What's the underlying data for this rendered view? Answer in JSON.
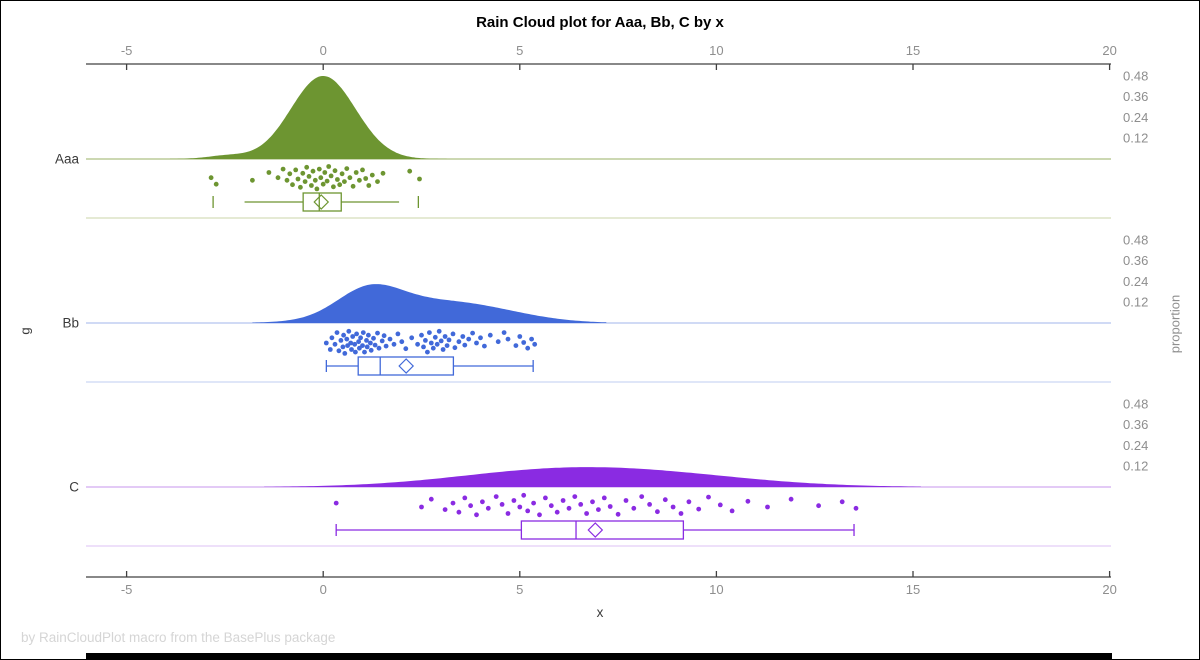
{
  "title": "Rain Cloud plot for Aaa, Bb, C by x",
  "footer": "by RainCloudPlot macro from the BasePlus package",
  "chart_data": {
    "type": "raincloud (half-violin density + jittered points + boxplot, horizontal, grouped)",
    "title": "Rain Cloud plot for Aaa, Bb, C by x",
    "xlabel": "x",
    "ylabel": "g",
    "right_axis_label": "proportion",
    "grid": "off",
    "legend": "none",
    "x_axis": {
      "range": [
        -6.05,
        20.1
      ],
      "shown_on_top_and_bottom": true,
      "ticks": [
        {
          "v": -5,
          "label": "-5"
        },
        {
          "v": 0,
          "label": "0"
        },
        {
          "v": 5,
          "label": "5"
        },
        {
          "v": 10,
          "label": "10"
        },
        {
          "v": 15,
          "label": "15"
        },
        {
          "v": 20,
          "label": "20"
        }
      ]
    },
    "proportion_ticks": [
      {
        "v": 0.48,
        "label": "0.48"
      },
      {
        "v": 0.36,
        "label": "0.36"
      },
      {
        "v": 0.24,
        "label": "0.24"
      },
      {
        "v": 0.12,
        "label": "0.12"
      }
    ],
    "colors": {
      "axis_line": "#404040",
      "tick_label": "#8e8e8e",
      "category_label": "#3a3a3a",
      "title": "#000000",
      "footer": "#d5d5d5",
      "box_fill": "#ffffff"
    },
    "groups": [
      {
        "name": "Aaa",
        "colors": {
          "fill": "#6d9531",
          "baseline": "#aec183",
          "separator": "#d5deba"
        },
        "density": {
          "peak_proportion": 0.48,
          "range": [
            -3.9,
            3.3
          ],
          "components": [
            {
              "mu": 0,
              "sigma": 0.82,
              "w": 1
            },
            {
              "mu": -2.45,
              "sigma": 0.5,
              "w": 0.04
            }
          ]
        },
        "box": {
          "fence_low": -2.8,
          "whisker_low": -2.0,
          "q1": -0.51,
          "median": -0.1,
          "q3": 0.46,
          "whisker_high": 1.93,
          "fence_high": 2.42,
          "mean": -0.05,
          "caps": false
        },
        "points": [
          [
            -2.85,
            0.45
          ],
          [
            -2.72,
            0.7
          ],
          [
            -1.8,
            0.55
          ],
          [
            -1.38,
            0.25
          ],
          [
            -1.15,
            0.45
          ],
          [
            -1.02,
            0.12
          ],
          [
            -0.92,
            0.55
          ],
          [
            -0.85,
            0.3
          ],
          [
            -0.78,
            0.72
          ],
          [
            -0.7,
            0.15
          ],
          [
            -0.64,
            0.5
          ],
          [
            -0.58,
            0.82
          ],
          [
            -0.52,
            0.28
          ],
          [
            -0.46,
            0.6
          ],
          [
            -0.42,
            0.05
          ],
          [
            -0.36,
            0.4
          ],
          [
            -0.3,
            0.75
          ],
          [
            -0.26,
            0.2
          ],
          [
            -0.2,
            0.55
          ],
          [
            -0.16,
            0.88
          ],
          [
            -0.1,
            0.12
          ],
          [
            -0.06,
            0.45
          ],
          [
            0.0,
            0.7
          ],
          [
            0.04,
            0.25
          ],
          [
            0.1,
            0.58
          ],
          [
            0.14,
            0.02
          ],
          [
            0.2,
            0.38
          ],
          [
            0.26,
            0.8
          ],
          [
            0.3,
            0.18
          ],
          [
            0.36,
            0.52
          ],
          [
            0.42,
            0.72
          ],
          [
            0.48,
            0.3
          ],
          [
            0.54,
            0.6
          ],
          [
            0.6,
            0.1
          ],
          [
            0.68,
            0.45
          ],
          [
            0.76,
            0.78
          ],
          [
            0.84,
            0.25
          ],
          [
            0.92,
            0.55
          ],
          [
            1.0,
            0.15
          ],
          [
            1.08,
            0.48
          ],
          [
            1.16,
            0.75
          ],
          [
            1.25,
            0.35
          ],
          [
            1.38,
            0.6
          ],
          [
            1.52,
            0.28
          ],
          [
            2.2,
            0.2
          ],
          [
            2.45,
            0.5
          ]
        ]
      },
      {
        "name": "Bb",
        "colors": {
          "fill": "#4169d9",
          "baseline": "#b3c3ef",
          "separator": "#ccd6f4"
        },
        "density": {
          "peak_proportion": 0.225,
          "range": [
            -1.8,
            7.2
          ],
          "components": [
            {
              "mu": 1.15,
              "sigma": 0.8,
              "w": 1
            },
            {
              "mu": 2.6,
              "sigma": 1.6,
              "w": 0.75
            },
            {
              "mu": 4.2,
              "sigma": 1.3,
              "w": 0.22
            }
          ]
        },
        "box": {
          "fence_low": null,
          "whisker_low": 0.08,
          "q1": 0.89,
          "median": 1.45,
          "q3": 3.31,
          "whisker_high": 5.34,
          "fence_high": null,
          "mean": 2.11,
          "caps": true
        },
        "points": [
          [
            0.08,
            0.5
          ],
          [
            0.18,
            0.75
          ],
          [
            0.22,
            0.3
          ],
          [
            0.3,
            0.55
          ],
          [
            0.35,
            0.1
          ],
          [
            0.4,
            0.8
          ],
          [
            0.45,
            0.4
          ],
          [
            0.5,
            0.65
          ],
          [
            0.52,
            0.2
          ],
          [
            0.55,
            0.9
          ],
          [
            0.6,
            0.35
          ],
          [
            0.62,
            0.6
          ],
          [
            0.65,
            0.05
          ],
          [
            0.7,
            0.5
          ],
          [
            0.72,
            0.75
          ],
          [
            0.75,
            0.25
          ],
          [
            0.8,
            0.55
          ],
          [
            0.82,
            0.85
          ],
          [
            0.85,
            0.15
          ],
          [
            0.9,
            0.45
          ],
          [
            0.92,
            0.7
          ],
          [
            0.95,
            0.3
          ],
          [
            1.0,
            0.6
          ],
          [
            1.02,
            0.1
          ],
          [
            1.05,
            0.85
          ],
          [
            1.1,
            0.4
          ],
          [
            1.12,
            0.65
          ],
          [
            1.15,
            0.2
          ],
          [
            1.2,
            0.5
          ],
          [
            1.22,
            0.78
          ],
          [
            1.28,
            0.32
          ],
          [
            1.32,
            0.58
          ],
          [
            1.38,
            0.12
          ],
          [
            1.42,
            0.7
          ],
          [
            1.5,
            0.42
          ],
          [
            1.55,
            0.22
          ],
          [
            1.6,
            0.62
          ],
          [
            1.7,
            0.35
          ],
          [
            1.8,
            0.55
          ],
          [
            1.9,
            0.15
          ],
          [
            2.0,
            0.45
          ],
          [
            2.1,
            0.72
          ],
          [
            2.25,
            0.3
          ],
          [
            2.4,
            0.55
          ],
          [
            2.5,
            0.2
          ],
          [
            2.55,
            0.65
          ],
          [
            2.6,
            0.4
          ],
          [
            2.65,
            0.85
          ],
          [
            2.7,
            0.1
          ],
          [
            2.75,
            0.5
          ],
          [
            2.8,
            0.7
          ],
          [
            2.85,
            0.28
          ],
          [
            2.9,
            0.55
          ],
          [
            2.95,
            0.05
          ],
          [
            3.0,
            0.42
          ],
          [
            3.05,
            0.75
          ],
          [
            3.1,
            0.25
          ],
          [
            3.15,
            0.6
          ],
          [
            3.2,
            0.38
          ],
          [
            3.3,
            0.15
          ],
          [
            3.35,
            0.68
          ],
          [
            3.45,
            0.45
          ],
          [
            3.55,
            0.25
          ],
          [
            3.6,
            0.58
          ],
          [
            3.7,
            0.35
          ],
          [
            3.8,
            0.12
          ],
          [
            3.9,
            0.5
          ],
          [
            4.0,
            0.3
          ],
          [
            4.1,
            0.62
          ],
          [
            4.25,
            0.2
          ],
          [
            4.45,
            0.45
          ],
          [
            4.6,
            0.1
          ],
          [
            4.7,
            0.35
          ],
          [
            4.9,
            0.6
          ],
          [
            5.0,
            0.25
          ],
          [
            5.1,
            0.48
          ],
          [
            5.2,
            0.7
          ],
          [
            5.3,
            0.35
          ],
          [
            5.38,
            0.55
          ]
        ]
      },
      {
        "name": "C",
        "colors": {
          "fill": "#8a2be2",
          "baseline": "#d2aaf0",
          "separator": "#e3cdf6"
        },
        "density": {
          "peak_proportion": 0.115,
          "range": [
            -1.5,
            15.2
          ],
          "components": [
            {
              "mu": 5.5,
              "sigma": 2.5,
              "w": 1
            },
            {
              "mu": 8.5,
              "sigma": 2.6,
              "w": 0.85
            }
          ]
        },
        "box": {
          "fence_low": null,
          "whisker_low": 0.33,
          "q1": 5.04,
          "median": 6.43,
          "q3": 9.16,
          "whisker_high": 13.5,
          "fence_high": null,
          "mean": 6.92,
          "caps": true
        },
        "points": [
          [
            0.33,
            0.35
          ],
          [
            2.5,
            0.5
          ],
          [
            2.75,
            0.2
          ],
          [
            3.1,
            0.6
          ],
          [
            3.3,
            0.35
          ],
          [
            3.45,
            0.7
          ],
          [
            3.6,
            0.15
          ],
          [
            3.75,
            0.45
          ],
          [
            3.9,
            0.8
          ],
          [
            4.05,
            0.3
          ],
          [
            4.2,
            0.55
          ],
          [
            4.4,
            0.1
          ],
          [
            4.55,
            0.4
          ],
          [
            4.7,
            0.75
          ],
          [
            4.85,
            0.25
          ],
          [
            5.0,
            0.5
          ],
          [
            5.1,
            0.05
          ],
          [
            5.2,
            0.65
          ],
          [
            5.35,
            0.35
          ],
          [
            5.5,
            0.8
          ],
          [
            5.65,
            0.15
          ],
          [
            5.8,
            0.45
          ],
          [
            5.95,
            0.7
          ],
          [
            6.1,
            0.25
          ],
          [
            6.25,
            0.55
          ],
          [
            6.4,
            0.1
          ],
          [
            6.55,
            0.4
          ],
          [
            6.7,
            0.75
          ],
          [
            6.85,
            0.3
          ],
          [
            7.0,
            0.6
          ],
          [
            7.15,
            0.15
          ],
          [
            7.3,
            0.48
          ],
          [
            7.5,
            0.78
          ],
          [
            7.7,
            0.25
          ],
          [
            7.9,
            0.55
          ],
          [
            8.1,
            0.1
          ],
          [
            8.3,
            0.4
          ],
          [
            8.5,
            0.68
          ],
          [
            8.7,
            0.22
          ],
          [
            8.9,
            0.5
          ],
          [
            9.1,
            0.75
          ],
          [
            9.3,
            0.3
          ],
          [
            9.55,
            0.58
          ],
          [
            9.8,
            0.12
          ],
          [
            10.1,
            0.42
          ],
          [
            10.4,
            0.65
          ],
          [
            10.8,
            0.28
          ],
          [
            11.3,
            0.5
          ],
          [
            11.9,
            0.2
          ],
          [
            12.6,
            0.45
          ],
          [
            13.2,
            0.3
          ],
          [
            13.55,
            0.55
          ]
        ]
      }
    ]
  }
}
